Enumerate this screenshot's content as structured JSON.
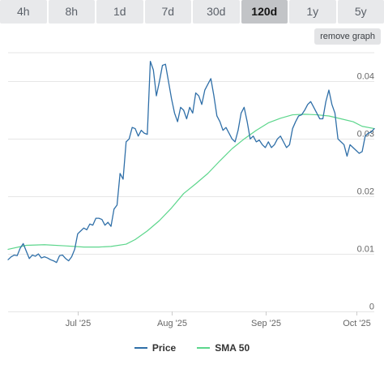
{
  "range_tabs": [
    {
      "label": "4h",
      "active": false
    },
    {
      "label": "8h",
      "active": false
    },
    {
      "label": "1d",
      "active": false
    },
    {
      "label": "7d",
      "active": false
    },
    {
      "label": "30d",
      "active": false
    },
    {
      "label": "120d",
      "active": true
    },
    {
      "label": "1y",
      "active": false
    },
    {
      "label": "5y",
      "active": false
    }
  ],
  "remove_graph_label": "remove graph",
  "colors": {
    "price": "#2f6fa8",
    "sma": "#5cd68c",
    "grid": "#e6e6e6"
  },
  "chart_data": {
    "type": "line",
    "title": "",
    "xlabel": "",
    "ylabel": "",
    "ylim": [
      0,
      0.045
    ],
    "grid": true,
    "legend_position": "bottom-center",
    "y_ticks": [
      {
        "value": 0,
        "label": "0"
      },
      {
        "value": 0.01,
        "label": "0.01"
      },
      {
        "value": 0.02,
        "label": "0.02"
      },
      {
        "value": 0.03,
        "label": "0.03"
      },
      {
        "value": 0.04,
        "label": "0.04"
      }
    ],
    "x_range": [
      "2025-06-08",
      "2025-10-07"
    ],
    "x_ticks": [
      {
        "date": "2025-07-01",
        "label": "Jul '25"
      },
      {
        "date": "2025-08-01",
        "label": "Aug '25"
      },
      {
        "date": "2025-09-01",
        "label": "Sep '25"
      },
      {
        "date": "2025-10-01",
        "label": "Oct '25"
      }
    ],
    "series": [
      {
        "name": "Price",
        "color": "#2f6fa8",
        "points": [
          [
            "2025-06-08",
            0.009
          ],
          [
            "2025-06-09",
            0.0095
          ],
          [
            "2025-06-10",
            0.0098
          ],
          [
            "2025-06-11",
            0.0097
          ],
          [
            "2025-06-12",
            0.011
          ],
          [
            "2025-06-13",
            0.0118
          ],
          [
            "2025-06-14",
            0.0105
          ],
          [
            "2025-06-15",
            0.0092
          ],
          [
            "2025-06-16",
            0.0098
          ],
          [
            "2025-06-17",
            0.0096
          ],
          [
            "2025-06-18",
            0.01
          ],
          [
            "2025-06-19",
            0.0093
          ],
          [
            "2025-06-20",
            0.0095
          ],
          [
            "2025-06-21",
            0.0093
          ],
          [
            "2025-06-22",
            0.009
          ],
          [
            "2025-06-23",
            0.0088
          ],
          [
            "2025-06-24",
            0.0085
          ],
          [
            "2025-06-25",
            0.0097
          ],
          [
            "2025-06-26",
            0.0098
          ],
          [
            "2025-06-27",
            0.0092
          ],
          [
            "2025-06-28",
            0.0088
          ],
          [
            "2025-06-29",
            0.0095
          ],
          [
            "2025-06-30",
            0.0108
          ],
          [
            "2025-07-01",
            0.0135
          ],
          [
            "2025-07-02",
            0.014
          ],
          [
            "2025-07-03",
            0.0145
          ],
          [
            "2025-07-04",
            0.0142
          ],
          [
            "2025-07-05",
            0.0152
          ],
          [
            "2025-07-06",
            0.015
          ],
          [
            "2025-07-07",
            0.0162
          ],
          [
            "2025-07-08",
            0.0162
          ],
          [
            "2025-07-09",
            0.016
          ],
          [
            "2025-07-10",
            0.015
          ],
          [
            "2025-07-11",
            0.0155
          ],
          [
            "2025-07-12",
            0.0148
          ],
          [
            "2025-07-13",
            0.0178
          ],
          [
            "2025-07-14",
            0.0185
          ],
          [
            "2025-07-15",
            0.024
          ],
          [
            "2025-07-16",
            0.023
          ],
          [
            "2025-07-17",
            0.0295
          ],
          [
            "2025-07-18",
            0.03
          ],
          [
            "2025-07-19",
            0.032
          ],
          [
            "2025-07-20",
            0.0318
          ],
          [
            "2025-07-21",
            0.0305
          ],
          [
            "2025-07-22",
            0.0315
          ],
          [
            "2025-07-23",
            0.031
          ],
          [
            "2025-07-24",
            0.0308
          ],
          [
            "2025-07-25",
            0.0435
          ],
          [
            "2025-07-26",
            0.042
          ],
          [
            "2025-07-27",
            0.0375
          ],
          [
            "2025-07-28",
            0.04
          ],
          [
            "2025-07-29",
            0.0428
          ],
          [
            "2025-07-30",
            0.043
          ],
          [
            "2025-07-31",
            0.04
          ],
          [
            "2025-08-01",
            0.037
          ],
          [
            "2025-08-02",
            0.0345
          ],
          [
            "2025-08-03",
            0.033
          ],
          [
            "2025-08-04",
            0.0355
          ],
          [
            "2025-08-05",
            0.035
          ],
          [
            "2025-08-06",
            0.0335
          ],
          [
            "2025-08-07",
            0.0355
          ],
          [
            "2025-08-08",
            0.0345
          ],
          [
            "2025-08-09",
            0.038
          ],
          [
            "2025-08-10",
            0.0375
          ],
          [
            "2025-08-11",
            0.036
          ],
          [
            "2025-08-12",
            0.0385
          ],
          [
            "2025-08-13",
            0.0395
          ],
          [
            "2025-08-14",
            0.0405
          ],
          [
            "2025-08-15",
            0.0375
          ],
          [
            "2025-08-16",
            0.034
          ],
          [
            "2025-08-17",
            0.033
          ],
          [
            "2025-08-18",
            0.0315
          ],
          [
            "2025-08-19",
            0.032
          ],
          [
            "2025-08-20",
            0.031
          ],
          [
            "2025-08-21",
            0.03
          ],
          [
            "2025-08-22",
            0.0295
          ],
          [
            "2025-08-23",
            0.0315
          ],
          [
            "2025-08-24",
            0.0345
          ],
          [
            "2025-08-25",
            0.0355
          ],
          [
            "2025-08-26",
            0.033
          ],
          [
            "2025-08-27",
            0.03
          ],
          [
            "2025-08-28",
            0.0305
          ],
          [
            "2025-08-29",
            0.0295
          ],
          [
            "2025-08-30",
            0.0298
          ],
          [
            "2025-08-31",
            0.029
          ],
          [
            "2025-09-01",
            0.0285
          ],
          [
            "2025-09-02",
            0.0295
          ],
          [
            "2025-09-03",
            0.0285
          ],
          [
            "2025-09-04",
            0.029
          ],
          [
            "2025-09-05",
            0.03
          ],
          [
            "2025-09-06",
            0.0305
          ],
          [
            "2025-09-07",
            0.0295
          ],
          [
            "2025-09-08",
            0.0285
          ],
          [
            "2025-09-09",
            0.029
          ],
          [
            "2025-09-10",
            0.0318
          ],
          [
            "2025-09-11",
            0.033
          ],
          [
            "2025-09-12",
            0.034
          ],
          [
            "2025-09-13",
            0.0342
          ],
          [
            "2025-09-14",
            0.035
          ],
          [
            "2025-09-15",
            0.036
          ],
          [
            "2025-09-16",
            0.0365
          ],
          [
            "2025-09-17",
            0.0355
          ],
          [
            "2025-09-18",
            0.0345
          ],
          [
            "2025-09-19",
            0.0335
          ],
          [
            "2025-09-20",
            0.0335
          ],
          [
            "2025-09-21",
            0.0365
          ],
          [
            "2025-09-22",
            0.0385
          ],
          [
            "2025-09-23",
            0.036
          ],
          [
            "2025-09-24",
            0.0345
          ],
          [
            "2025-09-25",
            0.03
          ],
          [
            "2025-09-26",
            0.0295
          ],
          [
            "2025-09-27",
            0.029
          ],
          [
            "2025-09-28",
            0.027
          ],
          [
            "2025-09-29",
            0.029
          ],
          [
            "2025-09-30",
            0.0285
          ],
          [
            "2025-10-01",
            0.028
          ],
          [
            "2025-10-02",
            0.0275
          ],
          [
            "2025-10-03",
            0.0278
          ],
          [
            "2025-10-04",
            0.0305
          ],
          [
            "2025-10-05",
            0.031
          ],
          [
            "2025-10-06",
            0.0312
          ],
          [
            "2025-10-07",
            0.0318
          ]
        ]
      },
      {
        "name": "SMA 50",
        "color": "#5cd68c",
        "points": [
          [
            "2025-06-08",
            0.0108
          ],
          [
            "2025-06-14",
            0.0115
          ],
          [
            "2025-06-20",
            0.0116
          ],
          [
            "2025-06-27",
            0.0114
          ],
          [
            "2025-07-03",
            0.0112
          ],
          [
            "2025-07-08",
            0.0112
          ],
          [
            "2025-07-12",
            0.0113
          ],
          [
            "2025-07-17",
            0.0117
          ],
          [
            "2025-07-20",
            0.0125
          ],
          [
            "2025-07-24",
            0.014
          ],
          [
            "2025-07-28",
            0.0158
          ],
          [
            "2025-08-01",
            0.018
          ],
          [
            "2025-08-05",
            0.0205
          ],
          [
            "2025-08-09",
            0.0222
          ],
          [
            "2025-08-13",
            0.024
          ],
          [
            "2025-08-17",
            0.0262
          ],
          [
            "2025-08-21",
            0.0283
          ],
          [
            "2025-08-25",
            0.03
          ],
          [
            "2025-08-29",
            0.0315
          ],
          [
            "2025-09-02",
            0.0328
          ],
          [
            "2025-09-06",
            0.0336
          ],
          [
            "2025-09-10",
            0.0342
          ],
          [
            "2025-09-14",
            0.0343
          ],
          [
            "2025-09-18",
            0.0342
          ],
          [
            "2025-09-22",
            0.034
          ],
          [
            "2025-09-26",
            0.0335
          ],
          [
            "2025-09-30",
            0.033
          ],
          [
            "2025-10-03",
            0.0322
          ],
          [
            "2025-10-07",
            0.0318
          ]
        ]
      }
    ]
  },
  "legend": [
    {
      "label": "Price",
      "color": "#2f6fa8"
    },
    {
      "label": "SMA 50",
      "color": "#5cd68c"
    }
  ]
}
